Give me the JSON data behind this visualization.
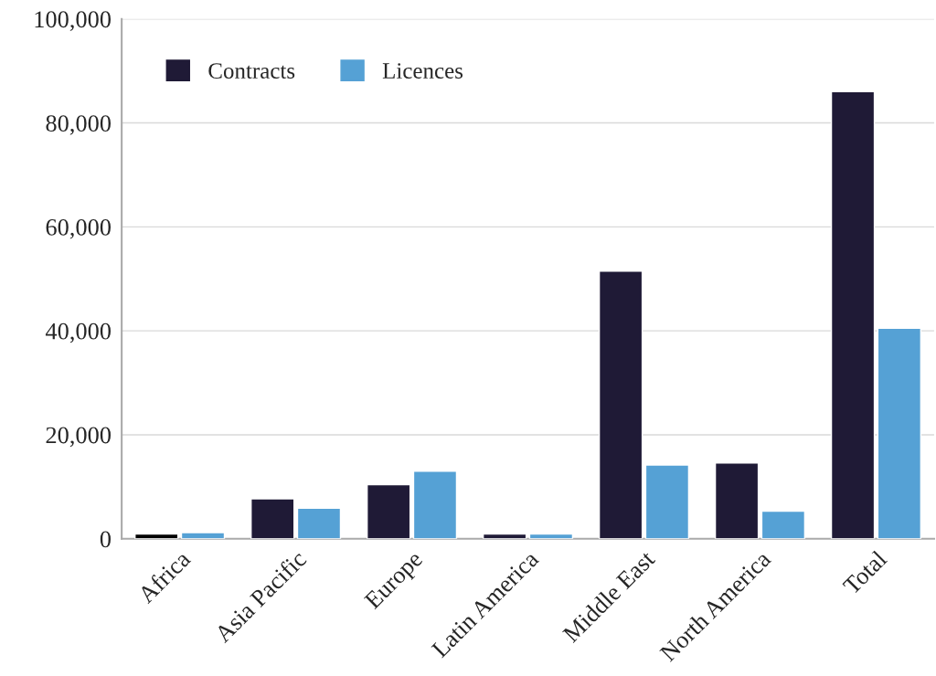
{
  "chart_data": {
    "type": "bar",
    "categories": [
      "Africa",
      "Asia Pacific",
      "Europe",
      "Latin America",
      "Middle East",
      "North America",
      "Total"
    ],
    "series": [
      {
        "name": "Contracts",
        "color": "#1f1a36",
        "colors": [
          "#000000",
          "#1f1a36",
          "#1f1a36",
          "#1f1a36",
          "#1f1a36",
          "#1f1a36",
          "#1f1a36"
        ],
        "values": [
          900,
          7700,
          10400,
          900,
          51500,
          14600,
          86000
        ]
      },
      {
        "name": "Licences",
        "color": "#55a1d5",
        "values": [
          1200,
          5900,
          13000,
          900,
          14200,
          5300,
          40500
        ]
      }
    ],
    "ylim": [
      0,
      100000
    ],
    "yticks": [
      {
        "value": 0,
        "label": "0"
      },
      {
        "value": 20000,
        "label": "20,000"
      },
      {
        "value": 40000,
        "label": "40,000"
      },
      {
        "value": 60000,
        "label": "60,000"
      },
      {
        "value": 80000,
        "label": "80,000"
      },
      {
        "value": 100000,
        "label": "100,000"
      }
    ],
    "grid": "y",
    "legend": "top left"
  }
}
